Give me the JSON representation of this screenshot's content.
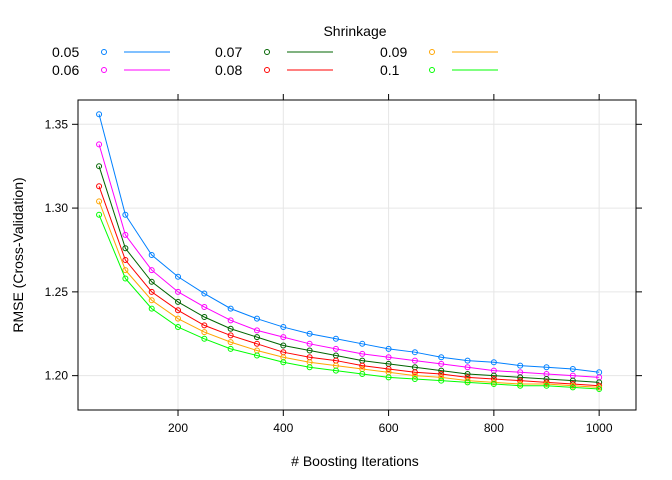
{
  "chart_data": {
    "type": "line",
    "xlabel": "# Boosting Iterations",
    "ylabel": "RMSE (Cross-Validation)",
    "xlim": [
      10,
      1070
    ],
    "ylim": [
      1.1795,
      1.3645
    ],
    "xticks": [
      200,
      400,
      600,
      800,
      1000
    ],
    "yticks": [
      1.2,
      1.25,
      1.3,
      1.35
    ],
    "xtick_labels": [
      "200",
      "400",
      "600",
      "800",
      "1000"
    ],
    "ytick_labels": [
      "1.20",
      "1.25",
      "1.30",
      "1.35"
    ],
    "grid": true,
    "legend": {
      "title": "Shrinkage",
      "position": "top",
      "columns": 3
    },
    "x": [
      50,
      100,
      150,
      200,
      250,
      300,
      350,
      400,
      450,
      500,
      550,
      600,
      650,
      700,
      750,
      800,
      850,
      900,
      950,
      1000
    ],
    "series": [
      {
        "name": "0.05",
        "color": "#0080ff",
        "values": [
          1.356,
          1.296,
          1.272,
          1.259,
          1.249,
          1.24,
          1.234,
          1.229,
          1.225,
          1.222,
          1.219,
          1.216,
          1.214,
          1.211,
          1.209,
          1.208,
          1.206,
          1.205,
          1.204,
          1.202
        ]
      },
      {
        "name": "0.06",
        "color": "#ff00ff",
        "values": [
          1.338,
          1.284,
          1.263,
          1.25,
          1.241,
          1.233,
          1.227,
          1.223,
          1.219,
          1.216,
          1.213,
          1.211,
          1.209,
          1.207,
          1.205,
          1.203,
          1.202,
          1.201,
          1.2,
          1.199
        ]
      },
      {
        "name": "0.07",
        "color": "#006400",
        "values": [
          1.325,
          1.276,
          1.256,
          1.244,
          1.235,
          1.228,
          1.223,
          1.218,
          1.215,
          1.212,
          1.209,
          1.207,
          1.205,
          1.203,
          1.201,
          1.2,
          1.199,
          1.198,
          1.197,
          1.196
        ]
      },
      {
        "name": "0.08",
        "color": "#ff0000",
        "values": [
          1.313,
          1.269,
          1.25,
          1.239,
          1.23,
          1.224,
          1.219,
          1.214,
          1.211,
          1.209,
          1.206,
          1.204,
          1.202,
          1.201,
          1.199,
          1.198,
          1.197,
          1.196,
          1.195,
          1.194
        ]
      },
      {
        "name": "0.09",
        "color": "#ffa500",
        "values": [
          1.304,
          1.263,
          1.245,
          1.234,
          1.226,
          1.22,
          1.215,
          1.211,
          1.208,
          1.206,
          1.204,
          1.202,
          1.2,
          1.199,
          1.197,
          1.196,
          1.195,
          1.195,
          1.194,
          1.193
        ]
      },
      {
        "name": "0.1",
        "color": "#00ff00",
        "values": [
          1.296,
          1.258,
          1.24,
          1.229,
          1.222,
          1.216,
          1.212,
          1.208,
          1.205,
          1.203,
          1.201,
          1.199,
          1.198,
          1.197,
          1.196,
          1.195,
          1.194,
          1.194,
          1.193,
          1.192
        ]
      }
    ]
  }
}
